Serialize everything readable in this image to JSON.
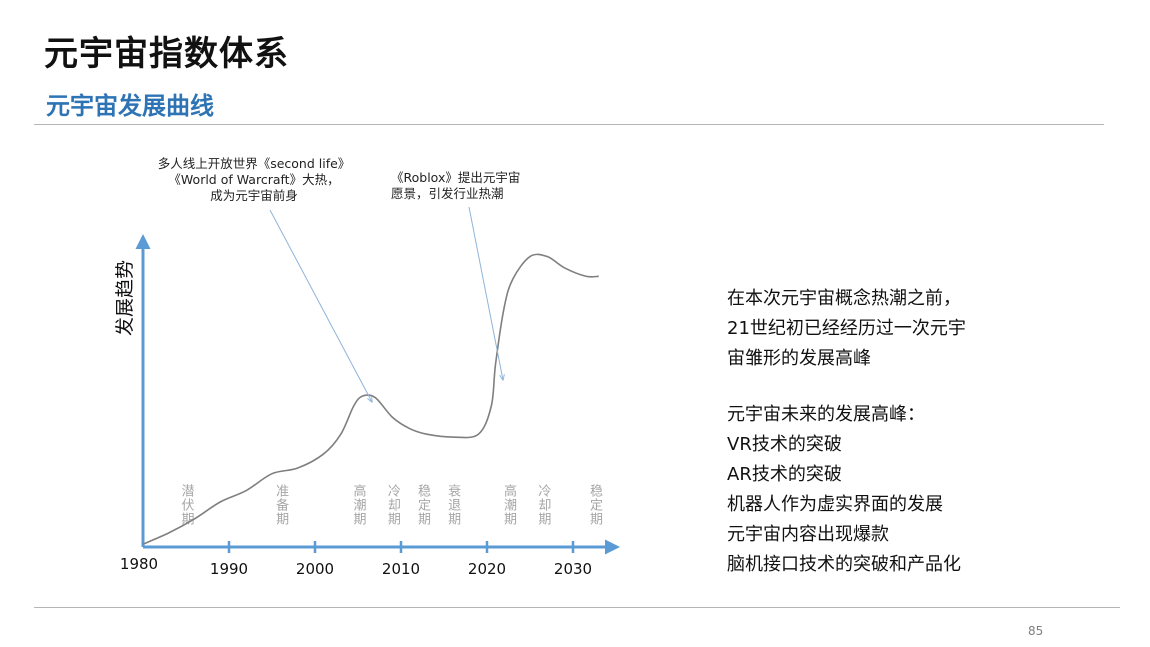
{
  "page": {
    "title": "元宇宙指数体系",
    "subtitle": "元宇宙发展曲线",
    "page_number": "85"
  },
  "colors": {
    "axis": "#5b9bd5",
    "curve": "#7f7f7f",
    "subtitle": "#2e74b5",
    "phase_label": "#a6a6a6"
  },
  "chart_data": {
    "type": "line",
    "title": "",
    "ylabel": "发展趋势",
    "xlabel": "",
    "x_ticks": [
      "1980",
      "1990",
      "2000",
      "2010",
      "2020",
      "2030"
    ],
    "xlim": [
      1980,
      2035
    ],
    "ylim": [
      0,
      10
    ],
    "grid": false,
    "series": [
      {
        "values": [
          [
            1980,
            0.1
          ],
          [
            1983,
            0.5
          ],
          [
            1986,
            1.0
          ],
          [
            1989,
            1.6
          ],
          [
            1992,
            2.0
          ],
          [
            1995,
            2.6
          ],
          [
            1998,
            2.8
          ],
          [
            2001,
            3.3
          ],
          [
            2003,
            4.0
          ],
          [
            2004.5,
            5.0
          ],
          [
            2005.5,
            5.35
          ],
          [
            2007,
            5.3
          ],
          [
            2009,
            4.6
          ],
          [
            2011,
            4.2
          ],
          [
            2013,
            4.0
          ],
          [
            2016,
            3.9
          ],
          [
            2019,
            4.0
          ],
          [
            2020.5,
            5.0
          ],
          [
            2021,
            6.5
          ],
          [
            2022,
            8.5
          ],
          [
            2023,
            9.5
          ],
          [
            2025,
            10.3
          ],
          [
            2027,
            10.3
          ],
          [
            2029,
            9.9
          ],
          [
            2031.5,
            9.6
          ],
          [
            2033,
            9.6
          ]
        ]
      }
    ],
    "phase_labels": [
      {
        "label": "潜伏期",
        "year": 1985
      },
      {
        "label": "准备期",
        "year": 1996
      },
      {
        "label": "高潮期",
        "year": 2005
      },
      {
        "label": "冷却期",
        "year": 2009
      },
      {
        "label": "稳定期",
        "year": 2012.5
      },
      {
        "label": "衰退期",
        "year": 2016
      },
      {
        "label": "高潮期",
        "year": 2022.5
      },
      {
        "label": "冷却期",
        "year": 2026.5
      },
      {
        "label": "稳定期",
        "year": 2032.5
      }
    ],
    "annotations": [
      {
        "lines": [
          "多人线上开放世界《second life》",
          "《World of Warcraft》大热，",
          "成为元宇宙前身"
        ],
        "target_year": 2005
      },
      {
        "lines": [
          "《Roblox》提出元宇宙",
          "愿景，引发行业热潮"
        ],
        "target_year": 2020.6
      }
    ]
  },
  "side_panel": {
    "paragraph1": [
      "在本次元宇宙概念热潮之前，",
      "21世纪初已经经历过一次元宇",
      "宙雏形的发展高峰"
    ],
    "heading": "元宇宙未来的发展高峰：",
    "items": [
      "VR技术的突破",
      "AR技术的突破",
      "机器人作为虚实界面的发展",
      "元宇宙内容出现爆款",
      "脑机接口技术的突破和产品化"
    ]
  }
}
